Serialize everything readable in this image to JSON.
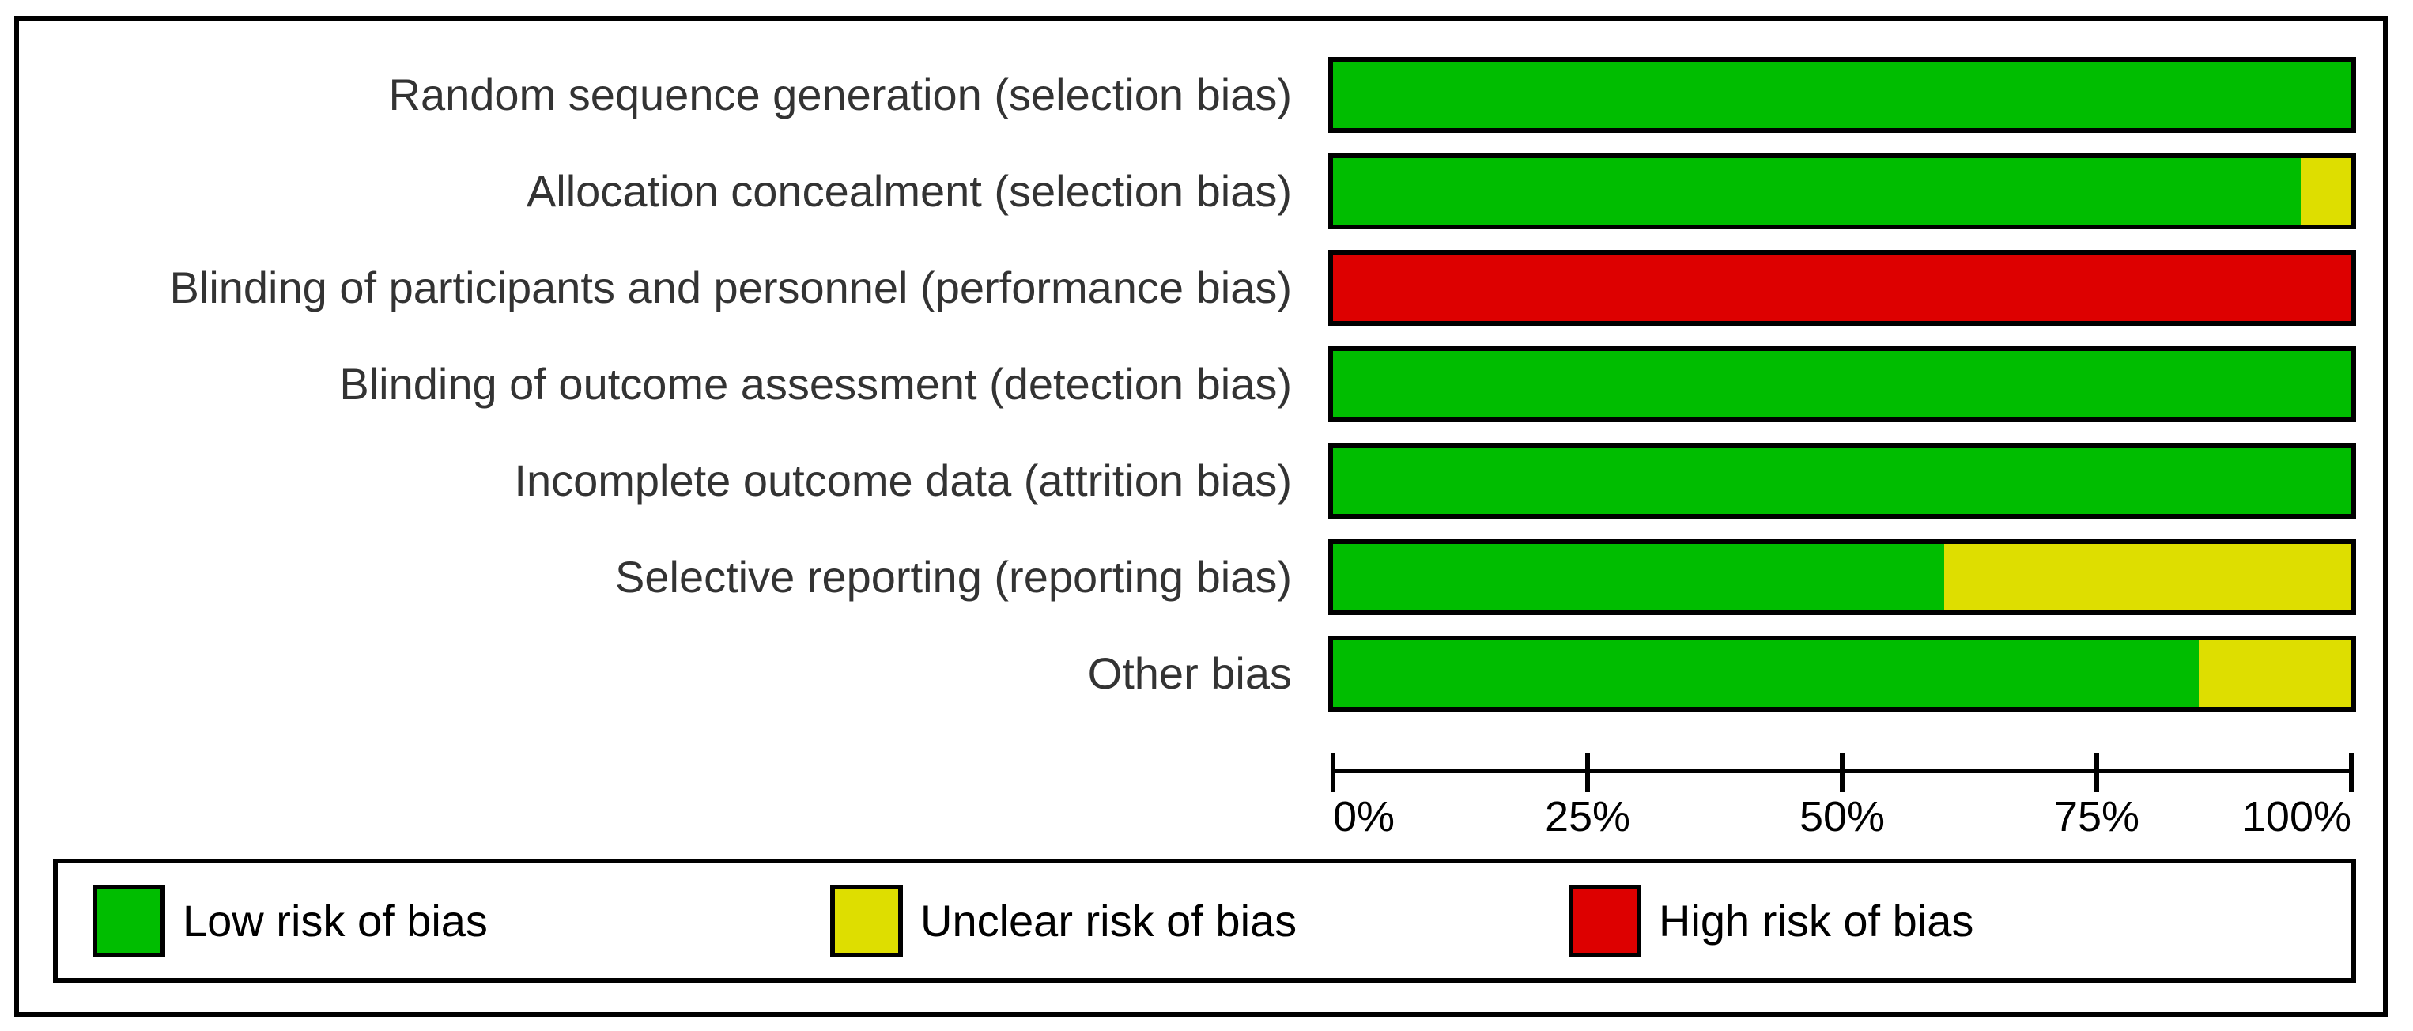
{
  "chart_data": {
    "type": "bar",
    "orientation": "horizontal-stacked",
    "title": "",
    "xlabel": "",
    "ylabel": "",
    "xlim": [
      0,
      100
    ],
    "grid": false,
    "legend_position": "bottom",
    "categories": [
      "Random sequence generation (selection bias)",
      "Allocation concealment (selection bias)",
      "Blinding of participants and personnel (performance bias)",
      "Blinding of outcome assessment (detection bias)",
      "Incomplete outcome data (attrition bias)",
      "Selective reporting (reporting bias)",
      "Other bias"
    ],
    "series": [
      {
        "name": "Low risk of bias",
        "color": "#00BD00",
        "values": [
          100,
          95,
          0,
          100,
          100,
          60,
          85
        ]
      },
      {
        "name": "Unclear risk of bias",
        "color": "#DEDE00",
        "values": [
          0,
          5,
          0,
          0,
          0,
          40,
          15
        ]
      },
      {
        "name": "High risk of bias",
        "color": "#DD0000",
        "values": [
          0,
          0,
          100,
          0,
          0,
          0,
          0
        ]
      }
    ],
    "x_tick_labels": [
      "0%",
      "25%",
      "50%",
      "75%",
      "100%"
    ],
    "x_tick_values": [
      0,
      25,
      50,
      75,
      100
    ]
  },
  "legend": {
    "items": [
      {
        "label": "Low risk of bias",
        "color": "#00BD00"
      },
      {
        "label": "Unclear risk of bias",
        "color": "#DEDE00"
      },
      {
        "label": "High risk of bias",
        "color": "#DD0000"
      }
    ]
  },
  "colors": {
    "low_risk": "#00BD00",
    "unclear_risk": "#DEDE00",
    "high_risk": "#DD0000",
    "border": "#000000",
    "label_text": "#333333"
  }
}
